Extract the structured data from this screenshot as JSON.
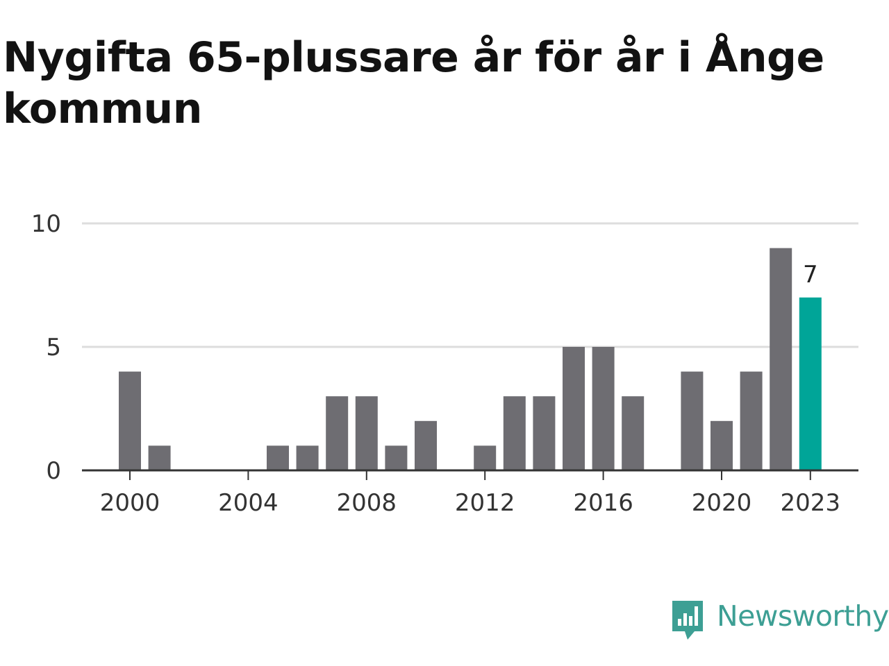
{
  "title": "Nygifta 65-plussare år för år i Ånge kommun",
  "brand": {
    "name": "Newsworthy",
    "icon": "newsworthy-logo-icon",
    "color": "#3d9f94"
  },
  "colors": {
    "bar": "#6e6d72",
    "highlight": "#00a598",
    "grid": "#dddddd",
    "axis": "#333333"
  },
  "chart_data": {
    "type": "bar",
    "title": "Nygifta 65-plussare år för år i Ånge kommun",
    "xlabel": "",
    "ylabel": "",
    "categories": [
      2000,
      2001,
      2002,
      2003,
      2004,
      2005,
      2006,
      2007,
      2008,
      2009,
      2010,
      2011,
      2012,
      2013,
      2014,
      2015,
      2016,
      2017,
      2018,
      2019,
      2020,
      2021,
      2022,
      2023
    ],
    "values": [
      4,
      1,
      0,
      0,
      0,
      1,
      1,
      3,
      3,
      1,
      2,
      0,
      1,
      3,
      3,
      5,
      5,
      3,
      0,
      4,
      2,
      4,
      9,
      7
    ],
    "highlight": {
      "category": 2023,
      "label": "7"
    },
    "x_ticks": [
      "2000",
      "2004",
      "2008",
      "2012",
      "2016",
      "2020",
      "2023"
    ],
    "y_ticks": [
      "0",
      "5",
      "10"
    ],
    "ylim": [
      0,
      10
    ],
    "grid": true,
    "legend": "none"
  }
}
